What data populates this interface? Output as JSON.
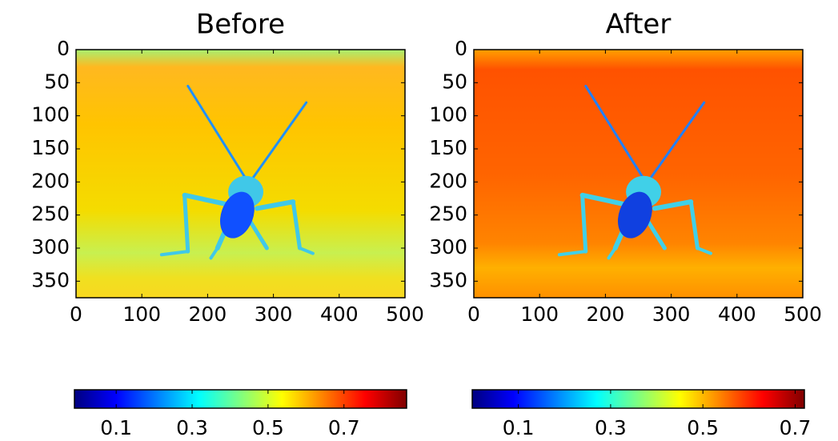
{
  "chart_data": [
    {
      "type": "image",
      "title": "Before",
      "colormap": "jet",
      "xlim": [
        0,
        500
      ],
      "ylim": [
        375,
        0
      ],
      "xticks": [
        0,
        100,
        200,
        300,
        400,
        500
      ],
      "yticks": [
        0,
        50,
        100,
        150,
        200,
        250,
        300,
        350
      ],
      "colorbar": {
        "lim": [
          -0.01,
          0.865
        ],
        "ticks": [
          0.1,
          0.3,
          0.5,
          0.7
        ]
      }
    },
    {
      "type": "image",
      "title": "After",
      "colormap": "jet",
      "xlim": [
        0,
        500
      ],
      "ylim": [
        375,
        0
      ],
      "xticks": [
        0,
        100,
        200,
        300,
        400,
        500
      ],
      "yticks": [
        0,
        50,
        100,
        150,
        200,
        250,
        300,
        350
      ],
      "colorbar": {
        "lim": [
          0,
          0.72
        ],
        "ticks": [
          0.1,
          0.3,
          0.5,
          0.7
        ]
      }
    }
  ]
}
